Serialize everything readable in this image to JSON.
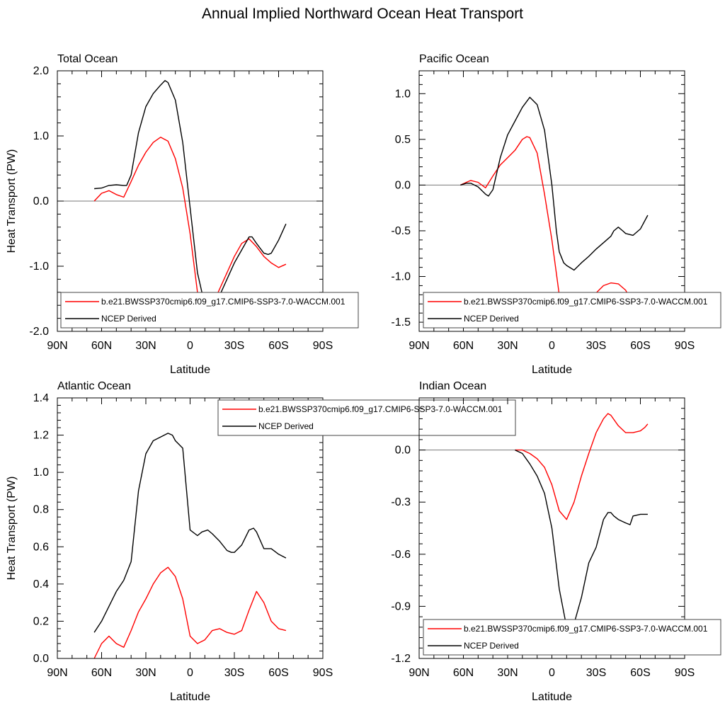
{
  "figure": {
    "title": "Annual Implied Northward Ocean Heat Transport"
  },
  "colors": {
    "model": "#ff0000",
    "obs": "#000000",
    "zero_line": "#777777",
    "axes": "#000000"
  },
  "chart_data": [
    {
      "type": "line",
      "title": "Total Ocean",
      "xlabel": "Latitude",
      "ylabel": "Heat Transport (PW)",
      "xlim": [
        90,
        -90
      ],
      "ylim": [
        -2.0,
        2.0
      ],
      "xticks": [
        90,
        60,
        30,
        0,
        -30,
        -60,
        -90
      ],
      "xtick_labels": [
        "90N",
        "60N",
        "30N",
        "0",
        "30S",
        "60S",
        "90S"
      ],
      "yticks": [
        -2.0,
        -1.0,
        0.0,
        1.0,
        2.0
      ],
      "ytick_labels": [
        "-2.0",
        "-1.0",
        "0.0",
        "1.0",
        "2.0"
      ],
      "grid": false,
      "zero_line": true,
      "legend_position": "lower-right",
      "series": [
        {
          "name": "b.e21.BWSSP370cmip6.f09_g17.CMIP6-SSP3-7.0-WACCM.001",
          "color": "#ff0000",
          "x": [
            65,
            60,
            55,
            50,
            45,
            40,
            35,
            30,
            25,
            20,
            15,
            10,
            5,
            0,
            -5,
            -10,
            -12,
            -15,
            -20,
            -25,
            -30,
            -35,
            -40,
            -45,
            -50,
            -55,
            -60,
            -65
          ],
          "y": [
            0.0,
            0.12,
            0.16,
            0.1,
            0.06,
            0.3,
            0.55,
            0.75,
            0.9,
            0.98,
            0.92,
            0.65,
            0.2,
            -0.5,
            -1.4,
            -1.8,
            -1.82,
            -1.6,
            -1.35,
            -1.1,
            -0.85,
            -0.65,
            -0.58,
            -0.7,
            -0.85,
            -0.95,
            -1.02,
            -0.97
          ]
        },
        {
          "name": "NCEP Derived",
          "color": "#000000",
          "x": [
            65,
            60,
            55,
            50,
            45,
            43,
            40,
            35,
            30,
            25,
            20,
            17,
            15,
            10,
            5,
            0,
            -5,
            -10,
            -12,
            -15,
            -20,
            -25,
            -30,
            -35,
            -40,
            -42,
            -45,
            -50,
            -53,
            -55,
            -60,
            -65
          ],
          "y": [
            0.19,
            0.2,
            0.24,
            0.25,
            0.24,
            0.24,
            0.4,
            1.05,
            1.45,
            1.65,
            1.78,
            1.85,
            1.82,
            1.55,
            0.9,
            -0.1,
            -1.1,
            -1.6,
            -1.65,
            -1.62,
            -1.45,
            -1.2,
            -0.95,
            -0.75,
            -0.55,
            -0.55,
            -0.65,
            -0.8,
            -0.82,
            -0.8,
            -0.6,
            -0.35
          ]
        }
      ]
    },
    {
      "type": "line",
      "title": "Pacific Ocean",
      "xlabel": "Latitude",
      "ylabel": "",
      "xlim": [
        90,
        -90
      ],
      "ylim": [
        -1.6,
        1.25
      ],
      "xticks": [
        90,
        60,
        30,
        0,
        -30,
        -60,
        -90
      ],
      "xtick_labels": [
        "90N",
        "60N",
        "30N",
        "0",
        "30S",
        "60S",
        "90S"
      ],
      "yticks": [
        -1.5,
        -1.0,
        -0.5,
        0.0,
        0.5,
        1.0
      ],
      "ytick_labels": [
        "-1.5",
        "-1.0",
        "-0.5",
        "0.0",
        "0.5",
        "1.0"
      ],
      "grid": false,
      "zero_line": true,
      "legend_position": "lower-right",
      "series": [
        {
          "name": "b.e21.BWSSP370cmip6.f09_g17.CMIP6-SSP3-7.0-WACCM.001",
          "color": "#ff0000",
          "x": [
            62,
            58,
            55,
            50,
            45,
            40,
            35,
            30,
            25,
            20,
            17,
            15,
            10,
            5,
            0,
            -5,
            -10,
            -12,
            -15,
            -20,
            -25,
            -30,
            -35,
            -40,
            -45,
            -50,
            -55,
            -60,
            -65
          ],
          "y": [
            0.0,
            0.03,
            0.05,
            0.03,
            -0.03,
            0.1,
            0.22,
            0.3,
            0.38,
            0.5,
            0.53,
            0.52,
            0.35,
            -0.1,
            -0.6,
            -1.2,
            -1.5,
            -1.52,
            -1.48,
            -1.35,
            -1.25,
            -1.18,
            -1.1,
            -1.07,
            -1.08,
            -1.15,
            -1.3,
            -1.42,
            -1.5
          ]
        },
        {
          "name": "NCEP Derived",
          "color": "#000000",
          "x": [
            62,
            58,
            55,
            50,
            45,
            43,
            40,
            35,
            30,
            25,
            20,
            15,
            10,
            5,
            0,
            -3,
            -5,
            -8,
            -10,
            -15,
            -20,
            -25,
            -30,
            -35,
            -40,
            -42,
            -45,
            -48,
            -50,
            -55,
            -60,
            -65
          ],
          "y": [
            0.0,
            0.02,
            0.02,
            -0.02,
            -0.1,
            -0.12,
            -0.05,
            0.3,
            0.55,
            0.7,
            0.85,
            0.96,
            0.88,
            0.6,
            0.0,
            -0.5,
            -0.73,
            -0.85,
            -0.88,
            -0.93,
            -0.85,
            -0.78,
            -0.7,
            -0.63,
            -0.56,
            -0.5,
            -0.46,
            -0.5,
            -0.53,
            -0.55,
            -0.48,
            -0.33
          ]
        }
      ]
    },
    {
      "type": "line",
      "title": "Atlantic Ocean",
      "xlabel": "Latitude",
      "ylabel": "Heat Transport (PW)",
      "xlim": [
        90,
        -90
      ],
      "ylim": [
        0.0,
        1.4
      ],
      "xticks": [
        90,
        60,
        30,
        0,
        -30,
        -60,
        -90
      ],
      "xtick_labels": [
        "90N",
        "60N",
        "30N",
        "0",
        "30S",
        "60S",
        "90S"
      ],
      "yticks": [
        0.0,
        0.2,
        0.4,
        0.6,
        0.8,
        1.0,
        1.2,
        1.4
      ],
      "ytick_labels": [
        "0.0",
        "0.2",
        "0.4",
        "0.6",
        "0.8",
        "1.0",
        "1.2",
        "1.4"
      ],
      "grid": false,
      "zero_line": false,
      "legend_position": "top-center",
      "series": [
        {
          "name": "b.e21.BWSSP370cmip6.f09_g17.CMIP6-SSP3-7.0-WACCM.001",
          "color": "#ff0000",
          "x": [
            65,
            60,
            55,
            50,
            45,
            40,
            35,
            30,
            25,
            20,
            15,
            10,
            5,
            0,
            -5,
            -10,
            -15,
            -20,
            -25,
            -30,
            -35,
            -40,
            -45,
            -50,
            -55,
            -60,
            -65
          ],
          "y": [
            0.0,
            0.08,
            0.12,
            0.08,
            0.06,
            0.15,
            0.25,
            0.32,
            0.4,
            0.46,
            0.49,
            0.44,
            0.32,
            0.12,
            0.08,
            0.1,
            0.15,
            0.16,
            0.14,
            0.13,
            0.15,
            0.26,
            0.36,
            0.3,
            0.2,
            0.16,
            0.15
          ]
        },
        {
          "name": "NCEP Derived",
          "color": "#000000",
          "x": [
            65,
            60,
            55,
            50,
            45,
            40,
            35,
            30,
            25,
            20,
            15,
            12,
            10,
            5,
            0,
            -5,
            -8,
            -12,
            -15,
            -20,
            -25,
            -28,
            -30,
            -35,
            -40,
            -43,
            -45,
            -50,
            -55,
            -60,
            -65
          ],
          "y": [
            0.14,
            0.2,
            0.28,
            0.36,
            0.42,
            0.52,
            0.9,
            1.1,
            1.17,
            1.19,
            1.21,
            1.2,
            1.17,
            1.13,
            0.69,
            0.66,
            0.68,
            0.69,
            0.67,
            0.63,
            0.58,
            0.57,
            0.57,
            0.61,
            0.69,
            0.7,
            0.68,
            0.59,
            0.59,
            0.56,
            0.54
          ]
        }
      ]
    },
    {
      "type": "line",
      "title": "Indian Ocean",
      "xlabel": "Latitude",
      "ylabel": "",
      "xlim": [
        90,
        -90
      ],
      "ylim": [
        -1.2,
        0.3
      ],
      "xticks": [
        90,
        60,
        30,
        0,
        -30,
        -60,
        -90
      ],
      "xtick_labels": [
        "90N",
        "60N",
        "30N",
        "0",
        "30S",
        "60S",
        "90S"
      ],
      "yticks": [
        -1.2,
        -0.9,
        -0.6,
        -0.3,
        0.0
      ],
      "ytick_labels": [
        "-1.2",
        "-0.9",
        "-0.6",
        "-0.3",
        "0.0"
      ],
      "grid": false,
      "zero_line": true,
      "legend_position": "lower-right",
      "series": [
        {
          "name": "b.e21.BWSSP370cmip6.f09_g17.CMIP6-SSP3-7.0-WACCM.001",
          "color": "#ff0000",
          "x": [
            25,
            22,
            20,
            15,
            10,
            5,
            0,
            -5,
            -10,
            -15,
            -20,
            -25,
            -30,
            -35,
            -38,
            -40,
            -45,
            -50,
            -55,
            -60,
            -63,
            -65
          ],
          "y": [
            0.0,
            0.0,
            0.0,
            -0.02,
            -0.05,
            -0.1,
            -0.2,
            -0.35,
            -0.4,
            -0.3,
            -0.15,
            -0.02,
            0.1,
            0.18,
            0.21,
            0.2,
            0.14,
            0.1,
            0.1,
            0.11,
            0.13,
            0.15
          ]
        },
        {
          "name": "NCEP Derived",
          "color": "#000000",
          "x": [
            25,
            20,
            15,
            10,
            5,
            0,
            -5,
            -10,
            -12,
            -15,
            -20,
            -25,
            -30,
            -35,
            -38,
            -40,
            -42,
            -45,
            -50,
            -53,
            -55,
            -60,
            -65
          ],
          "y": [
            0.0,
            -0.02,
            -0.08,
            -0.15,
            -0.25,
            -0.45,
            -0.8,
            -1.02,
            -1.04,
            -1.0,
            -0.85,
            -0.65,
            -0.56,
            -0.4,
            -0.36,
            -0.36,
            -0.38,
            -0.4,
            -0.42,
            -0.43,
            -0.38,
            -0.37,
            -0.37
          ]
        }
      ]
    }
  ]
}
